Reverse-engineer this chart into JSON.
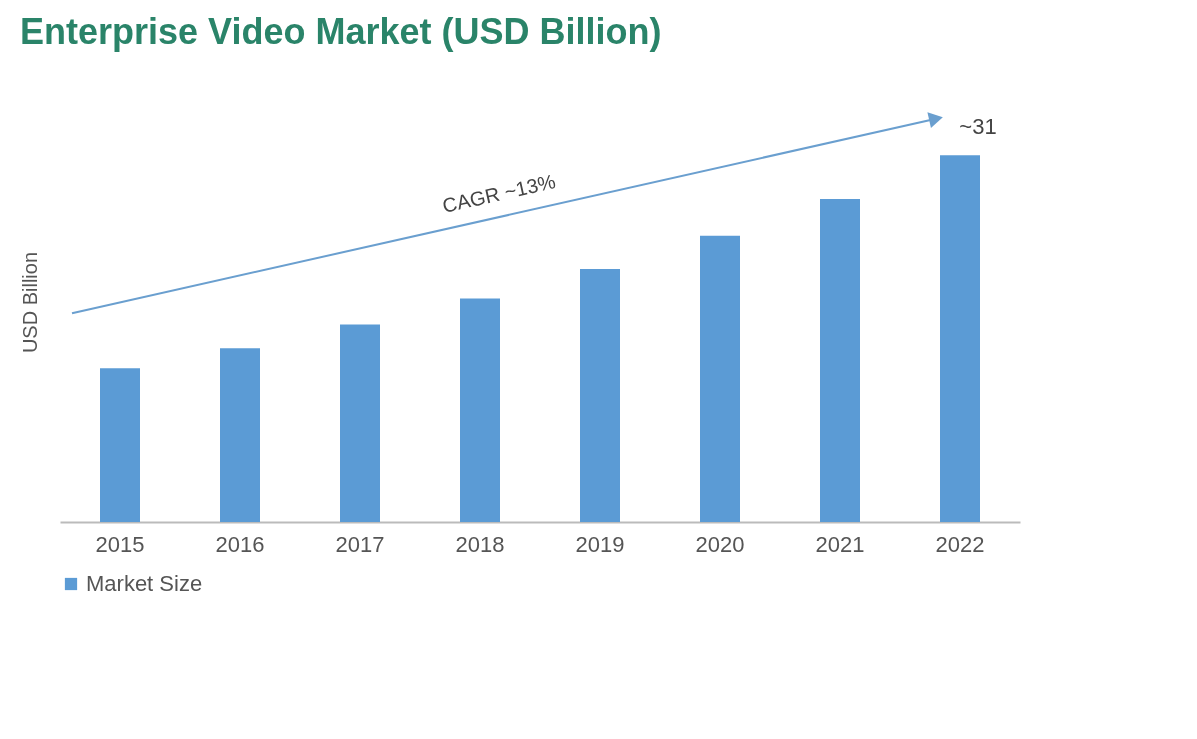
{
  "chart_data": {
    "type": "bar",
    "title": "Enterprise Video Market (USD Billion)",
    "ylabel": "USD Billion",
    "categories": [
      "2015",
      "2016",
      "2017",
      "2018",
      "2019",
      "2020",
      "2021",
      "2022"
    ],
    "series": [
      {
        "name": "Market Size",
        "color": "#5b9bd5",
        "values": [
          13,
          14.7,
          16.7,
          18.9,
          21.4,
          24.2,
          27.3,
          31
        ],
        "value_labels": [
          null,
          null,
          null,
          null,
          null,
          null,
          null,
          "~31"
        ]
      }
    ],
    "tick_labels": "x",
    "legend": "bottom",
    "grid": false,
    "annotations": [
      "CAGR ~13%"
    ]
  }
}
